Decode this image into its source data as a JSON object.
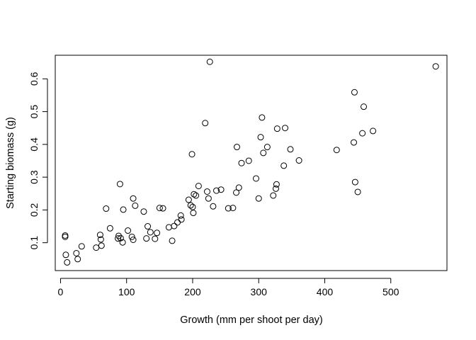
{
  "chart_data": {
    "type": "scatter",
    "title": "",
    "xlabel": "Growth (mm per shoot per day)",
    "ylabel": "Starting biomass (g)",
    "xlim": [
      -8,
      585
    ],
    "ylim": [
      0.015,
      0.672
    ],
    "xticks": [
      0,
      100,
      200,
      300,
      400,
      500
    ],
    "yticks": [
      0.1,
      0.2,
      0.3,
      0.4,
      0.5,
      0.6
    ],
    "grid": false,
    "legend": "none",
    "marker": "open-circle",
    "points": [
      [
        7,
        0.122
      ],
      [
        7,
        0.118
      ],
      [
        8,
        0.063
      ],
      [
        10,
        0.04
      ],
      [
        24,
        0.068
      ],
      [
        26,
        0.05
      ],
      [
        32,
        0.089
      ],
      [
        54,
        0.085
      ],
      [
        60,
        0.124
      ],
      [
        61,
        0.11
      ],
      [
        62,
        0.091
      ],
      [
        69,
        0.204
      ],
      [
        75,
        0.144
      ],
      [
        87,
        0.113
      ],
      [
        88,
        0.121
      ],
      [
        90,
        0.279
      ],
      [
        91,
        0.114
      ],
      [
        94,
        0.101
      ],
      [
        95,
        0.201
      ],
      [
        102,
        0.137
      ],
      [
        108,
        0.118
      ],
      [
        110,
        0.235
      ],
      [
        110,
        0.109
      ],
      [
        113,
        0.213
      ],
      [
        126,
        0.195
      ],
      [
        130,
        0.113
      ],
      [
        132,
        0.15
      ],
      [
        136,
        0.132
      ],
      [
        143,
        0.112
      ],
      [
        146,
        0.13
      ],
      [
        150,
        0.206
      ],
      [
        155,
        0.205
      ],
      [
        164,
        0.147
      ],
      [
        169,
        0.106
      ],
      [
        172,
        0.151
      ],
      [
        177,
        0.162
      ],
      [
        182,
        0.183
      ],
      [
        183,
        0.171
      ],
      [
        194,
        0.231
      ],
      [
        197,
        0.214
      ],
      [
        199,
        0.37
      ],
      [
        200,
        0.209
      ],
      [
        201,
        0.191
      ],
      [
        202,
        0.248
      ],
      [
        205,
        0.244
      ],
      [
        209,
        0.273
      ],
      [
        219,
        0.465
      ],
      [
        222,
        0.256
      ],
      [
        224,
        0.235
      ],
      [
        226,
        0.652
      ],
      [
        231,
        0.211
      ],
      [
        236,
        0.259
      ],
      [
        243,
        0.262
      ],
      [
        254,
        0.205
      ],
      [
        261,
        0.206
      ],
      [
        266,
        0.253
      ],
      [
        267,
        0.392
      ],
      [
        270,
        0.268
      ],
      [
        274,
        0.343
      ],
      [
        285,
        0.35
      ],
      [
        296,
        0.296
      ],
      [
        300,
        0.235
      ],
      [
        303,
        0.422
      ],
      [
        305,
        0.482
      ],
      [
        307,
        0.374
      ],
      [
        313,
        0.392
      ],
      [
        322,
        0.244
      ],
      [
        326,
        0.265
      ],
      [
        327,
        0.278
      ],
      [
        328,
        0.448
      ],
      [
        338,
        0.335
      ],
      [
        340,
        0.45
      ],
      [
        348,
        0.385
      ],
      [
        361,
        0.351
      ],
      [
        418,
        0.383
      ],
      [
        444,
        0.406
      ],
      [
        445,
        0.559
      ],
      [
        446,
        0.285
      ],
      [
        450,
        0.255
      ],
      [
        457,
        0.434
      ],
      [
        459,
        0.515
      ],
      [
        473,
        0.441
      ],
      [
        568,
        0.638
      ]
    ]
  }
}
